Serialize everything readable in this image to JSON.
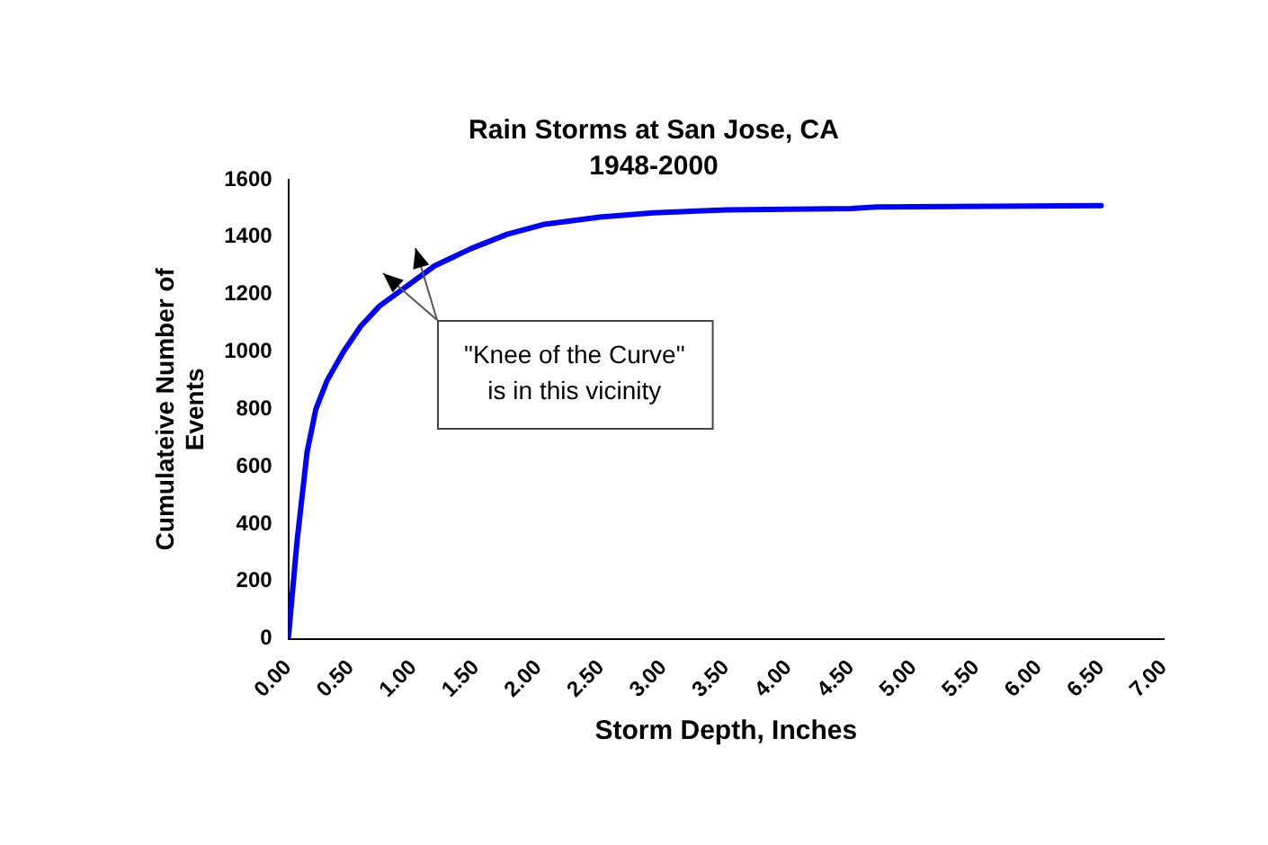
{
  "chart_data": {
    "type": "line",
    "title": "Rain Storms at San Jose, CA",
    "subtitle": "1948-2000",
    "xlabel": "Storm Depth, Inches",
    "ylabel": "Cumulateive Number of Events",
    "x": [
      0,
      0.07,
      0.15,
      0.22,
      0.31,
      0.44,
      0.58,
      0.73,
      0.95,
      1.17,
      1.46,
      1.75,
      2.05,
      2.49,
      2.92,
      3.5,
      4.5,
      4.7,
      6.5
    ],
    "series": [
      {
        "color": "#0000ff",
        "values": [
          0,
          340,
          650,
          800,
          900,
          1000,
          1090,
          1160,
          1230,
          1300,
          1360,
          1410,
          1445,
          1470,
          1485,
          1495,
          1500,
          1505,
          1510
        ]
      }
    ],
    "xlim": [
      0,
      7
    ],
    "xticks": [
      {
        "value": 0,
        "label": "0.00"
      },
      {
        "value": 0.5,
        "label": "0.50"
      },
      {
        "value": 1,
        "label": "1.00"
      },
      {
        "value": 1.5,
        "label": "1.50"
      },
      {
        "value": 2,
        "label": "2.00"
      },
      {
        "value": 2.5,
        "label": "2.50"
      },
      {
        "value": 3,
        "label": "3.00"
      },
      {
        "value": 3.5,
        "label": "3.50"
      },
      {
        "value": 4,
        "label": "4.00"
      },
      {
        "value": 4.5,
        "label": "4.50"
      },
      {
        "value": 5,
        "label": "5.00"
      },
      {
        "value": 5.5,
        "label": "5.50"
      },
      {
        "value": 6,
        "label": "6.00"
      },
      {
        "value": 6.5,
        "label": "6.50"
      },
      {
        "value": 7,
        "label": "7.00"
      }
    ],
    "ylim": [
      0,
      1600
    ],
    "yticks": [
      0,
      200,
      400,
      600,
      800,
      1000,
      1200,
      1400,
      1600
    ],
    "grid": false,
    "legend": false,
    "marker": "none",
    "line_style": "solid",
    "annotations": [
      "\"Knee of the Curve\"\nis in this vicinity"
    ]
  }
}
